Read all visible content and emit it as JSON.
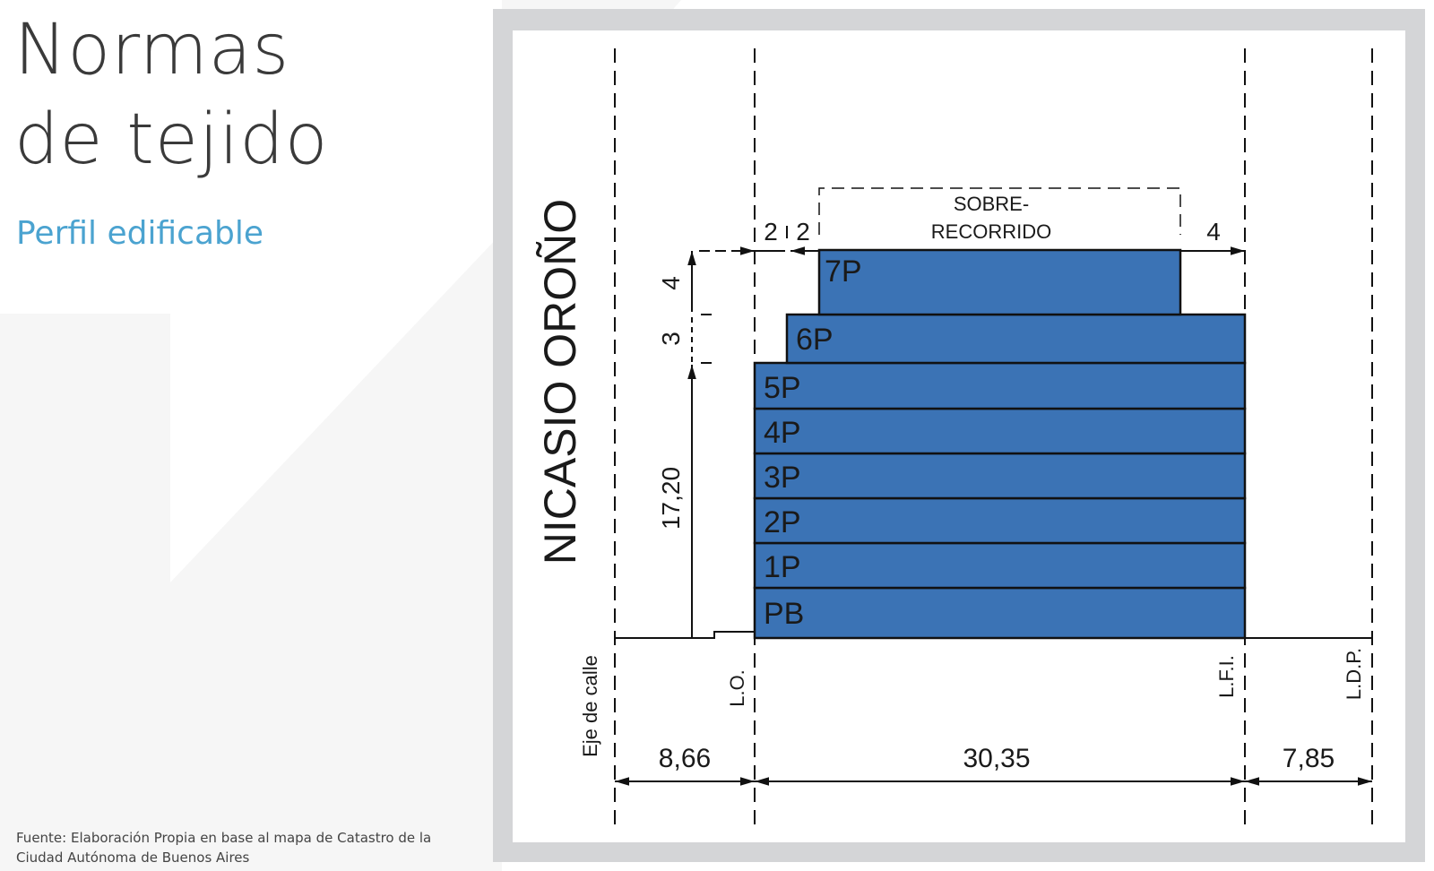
{
  "title_line1": "Normas",
  "title_line2": "de tejido",
  "subtitle": "Perfil edificable",
  "source": "Fuente: Elaboración Propia en base al mapa de Catastro de la Ciudad Autónoma de Buenos Aires",
  "colors": {
    "building": "#3b73b5",
    "accent": "#4ba3d0",
    "frame": "#d4d5d7"
  },
  "diagram": {
    "street_name": "NICASIO OROÑO",
    "floors": [
      "PB",
      "1P",
      "2P",
      "3P",
      "4P",
      "5P",
      "6P",
      "7P"
    ],
    "dimensions": {
      "height_base": "17,20",
      "step_6p": "3",
      "step_7p": "4",
      "setback_a": "2",
      "setback_b": "2",
      "setback_rear": "4",
      "overrun_line1": "SOBRE-",
      "overrun_line2": "RECORRIDO",
      "width_street": "8,66",
      "width_building": "30,35",
      "width_rear": "7,85"
    },
    "lines": {
      "eje": "Eje de calle",
      "lo": "L.O.",
      "lfi": "L.F.I.",
      "ldp": "L.D.P."
    }
  }
}
